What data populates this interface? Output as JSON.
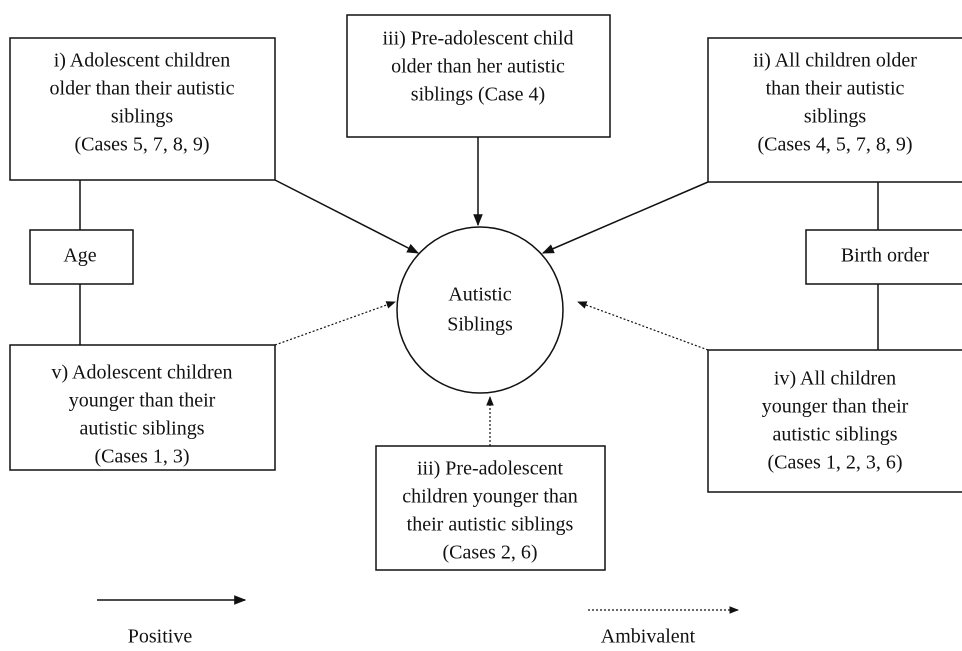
{
  "center": {
    "lines": [
      "Autistic",
      "Siblings"
    ]
  },
  "nodes": [
    {
      "lines": [
        "i) Adolescent children",
        "older than their autistic",
        "siblings",
        "(Cases 5, 7, 8, 9)"
      ]
    },
    {
      "lines": [
        "iii) Pre-adolescent child",
        "older than her autistic",
        "siblings (Case 4)"
      ]
    },
    {
      "lines": [
        "ii) All children older",
        "than their autistic",
        "siblings",
        "(Cases 4, 5, 7, 8, 9)"
      ]
    },
    {
      "lines": [
        "v) Adolescent children",
        "younger than their",
        "autistic siblings",
        "(Cases 1, 3)"
      ]
    },
    {
      "lines": [
        "iii) Pre-adolescent",
        "children younger than",
        "their autistic siblings",
        "(Cases 2, 6)"
      ]
    },
    {
      "lines": [
        "iv) All children",
        "younger than their",
        "autistic siblings",
        "(Cases 1, 2, 3, 6)"
      ]
    }
  ],
  "factors": [
    "Age",
    "Birth order"
  ],
  "legend": [
    "Positive",
    "Ambivalent"
  ]
}
